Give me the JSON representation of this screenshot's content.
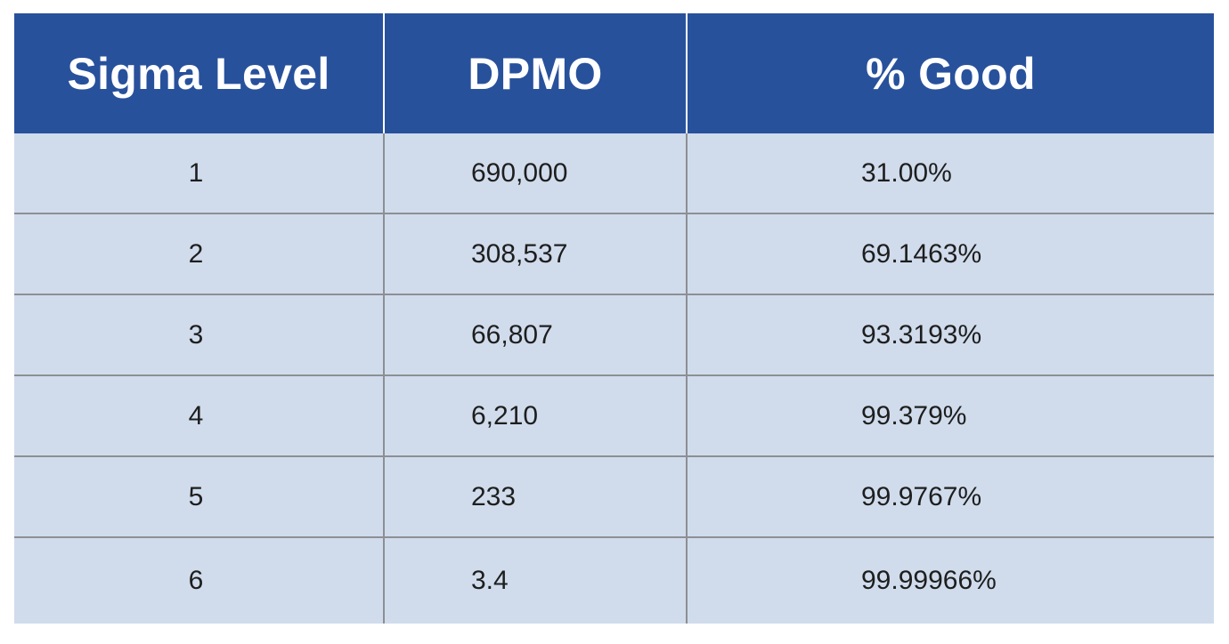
{
  "table": {
    "headers": [
      "Sigma Level",
      "DPMO",
      "% Good"
    ],
    "rows": [
      [
        "1",
        "690,000",
        "31.00%"
      ],
      [
        "2",
        "308,537",
        "69.1463%"
      ],
      [
        "3",
        "66,807",
        "93.3193%"
      ],
      [
        "4",
        "6,210",
        "99.379%"
      ],
      [
        "5",
        "233",
        "99.9767%"
      ],
      [
        "6",
        "3.4",
        "99.99966%"
      ]
    ]
  },
  "colors": {
    "header_bg": "#28519c",
    "header_text": "#ffffff",
    "row_bg": "#d0dcec",
    "grid_line": "#8c8f94"
  }
}
